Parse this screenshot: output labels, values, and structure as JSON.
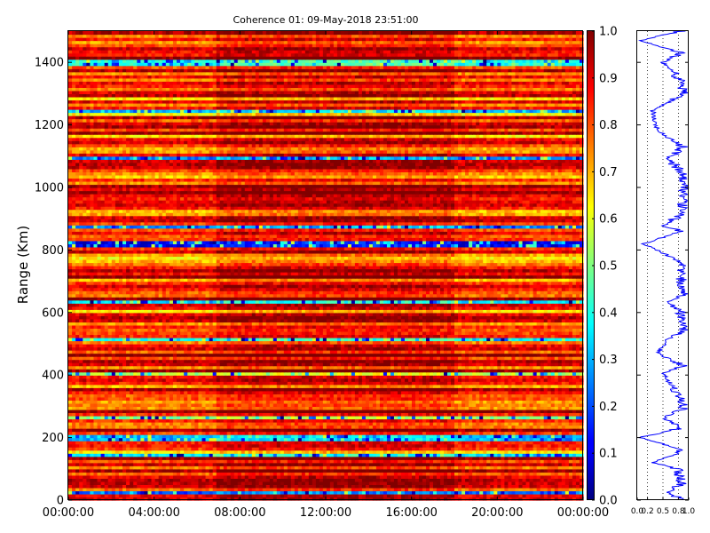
{
  "chart_data": [
    {
      "type": "heatmap",
      "title": "Coherence 01: 09-May-2018 23:51:00",
      "xlabel": "",
      "ylabel": "Range (Km)",
      "x_ticks": [
        "00:00:00",
        "04:00:00",
        "08:00:00",
        "12:00:00",
        "16:00:00",
        "20:00:00",
        "00:00:00"
      ],
      "x_hours": [
        0,
        4,
        8,
        12,
        16,
        20,
        24
      ],
      "xlim_hours": [
        0,
        24
      ],
      "y_ticks": [
        0,
        200,
        400,
        600,
        800,
        1000,
        1200,
        1400
      ],
      "ylim": [
        0,
        1500
      ],
      "data_segments_hours": [
        [
          0,
          6.9
        ],
        [
          6.9,
          18
        ],
        [
          18,
          24
        ]
      ],
      "low_coherence_bands_km": [
        {
          "km": 25,
          "value": 0.2
        },
        {
          "km": 145,
          "value": 0.35
        },
        {
          "km": 200,
          "value": 0.3
        },
        {
          "km": 265,
          "value": 0.5
        },
        {
          "km": 405,
          "value": 0.55
        },
        {
          "km": 515,
          "value": 0.4
        },
        {
          "km": 635,
          "value": 0.35
        },
        {
          "km": 820,
          "value": 0.1
        },
        {
          "km": 875,
          "value": 0.25
        },
        {
          "km": 1095,
          "value": 0.25
        },
        {
          "km": 1245,
          "value": 0.3
        },
        {
          "km": 1400,
          "value": 0.4
        }
      ],
      "colorbar": {
        "vmin": 0.0,
        "vmax": 1.0,
        "ticks": [
          "0.0",
          "0.1",
          "0.2",
          "0.3",
          "0.4",
          "0.5",
          "0.6",
          "0.7",
          "0.8",
          "0.9",
          "1.0"
        ],
        "colormap": "jet"
      },
      "grid": false
    },
    {
      "type": "line",
      "title": "",
      "xlabel": "",
      "ylabel": "",
      "xlim": [
        0,
        1
      ],
      "x_ticks": [
        "0.0",
        "0.2",
        "0.5",
        "0.8",
        "1.0"
      ],
      "x_tick_values": [
        0.0,
        0.2,
        0.5,
        0.8,
        1.0
      ],
      "dotted_gridlines_x": [
        0.2,
        0.5,
        0.8
      ],
      "ylim": [
        0,
        1500
      ],
      "series": [
        {
          "color": "#0000ff",
          "profile_km": [
            0,
            25,
            50,
            100,
            120,
            145,
            160,
            200,
            230,
            265,
            290,
            340,
            360,
            405,
            430,
            470,
            515,
            545,
            600,
            635,
            660,
            700,
            760,
            820,
            860,
            875,
            920,
            970,
            1010,
            1050,
            1095,
            1130,
            1180,
            1245,
            1300,
            1340,
            1400,
            1430,
            1470,
            1500
          ],
          "profile_value": [
            0.85,
            0.6,
            0.85,
            0.8,
            0.3,
            0.7,
            0.9,
            0.05,
            0.85,
            0.5,
            0.9,
            0.8,
            0.7,
            0.5,
            0.9,
            0.4,
            0.6,
            0.9,
            0.85,
            0.6,
            0.95,
            0.85,
            0.9,
            0.1,
            0.9,
            0.5,
            0.9,
            0.88,
            0.9,
            0.85,
            0.6,
            0.9,
            0.4,
            0.3,
            0.9,
            0.85,
            0.5,
            0.85,
            0.05,
            0.85
          ]
        }
      ]
    }
  ]
}
